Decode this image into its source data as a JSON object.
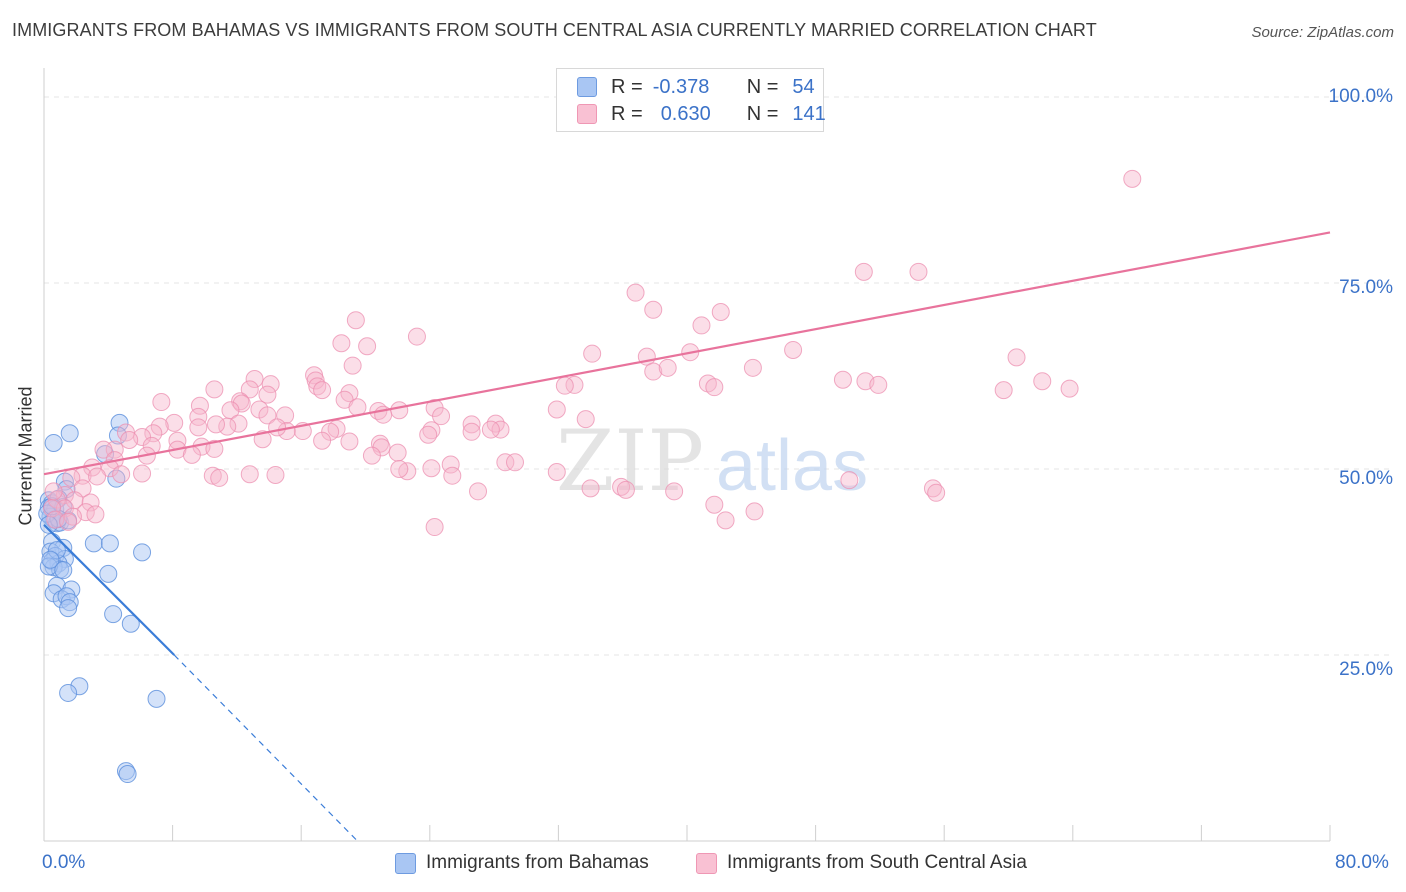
{
  "title": "IMMIGRANTS FROM BAHAMAS VS IMMIGRANTS FROM SOUTH CENTRAL ASIA CURRENTLY MARRIED CORRELATION CHART",
  "source": "Source: ZipAtlas.com",
  "legend": {
    "r_label": "R =",
    "n_label": "N =",
    "rows": [
      {
        "r": "-0.378",
        "n": "54",
        "fill": "#a9c6f3",
        "stroke": "#6e9be0"
      },
      {
        "r": "0.630",
        "n": "141",
        "fill": "#f9c1d3",
        "stroke": "#ef97b4"
      }
    ]
  },
  "bottom_legend": [
    "Immigrants from Bahamas",
    "Immigrants from South Central Asia"
  ],
  "watermark": {
    "zip": "ZIP",
    "atlas": "atlas"
  },
  "colors": {
    "blue": "#3b7dd8",
    "pink": "#e8739c",
    "blue_fill": "#a9c6f3",
    "pink_fill": "#f7b6cb",
    "axis_text": "#3b72c8"
  },
  "chart_data": {
    "type": "scatter",
    "title": "IMMIGRANTS FROM BAHAMAS VS IMMIGRANTS FROM SOUTH CENTRAL ASIA CURRENTLY MARRIED CORRELATION CHART",
    "xlabel": "",
    "ylabel": "Currently Married",
    "xlim": [
      0,
      80
    ],
    "ylim": [
      0,
      100
    ],
    "x_tick_labels": [
      "0.0%",
      "80.0%"
    ],
    "y_ticks": [
      25,
      50,
      75,
      100
    ],
    "y_tick_labels": [
      "25.0%",
      "50.0%",
      "75.0%",
      "100.0%"
    ],
    "series": [
      {
        "name": "Immigrants from Bahamas",
        "color": "#3b7dd8",
        "trend": {
          "x0": 0,
          "y0": 42.5,
          "x1": 8.1,
          "y1": 25.0,
          "dash_to_x": 19.5,
          "dash_to_y": 0
        },
        "points": [
          [
            0.6,
            53.5
          ],
          [
            1.6,
            54.8
          ],
          [
            4.7,
            56.2
          ],
          [
            4.6,
            54.5
          ],
          [
            3.8,
            52.0
          ],
          [
            4.5,
            48.7
          ],
          [
            1.3,
            48.3
          ],
          [
            1.4,
            47.3
          ],
          [
            0.3,
            45.8
          ],
          [
            0.5,
            45.4
          ],
          [
            0.9,
            46.0
          ],
          [
            0.3,
            44.8
          ],
          [
            0.7,
            44.6
          ],
          [
            1.2,
            44.9
          ],
          [
            0.4,
            43.6
          ],
          [
            0.6,
            43.2
          ],
          [
            0.8,
            42.7
          ],
          [
            1.0,
            42.8
          ],
          [
            1.5,
            43.1
          ],
          [
            0.5,
            40.2
          ],
          [
            1.2,
            39.4
          ],
          [
            0.4,
            38.9
          ],
          [
            0.7,
            38.3
          ],
          [
            1.3,
            37.9
          ],
          [
            0.5,
            37.6
          ],
          [
            0.9,
            37.3
          ],
          [
            0.6,
            36.8
          ],
          [
            1.0,
            36.5
          ],
          [
            0.3,
            36.9
          ],
          [
            3.1,
            40.0
          ],
          [
            4.1,
            40.0
          ],
          [
            6.1,
            38.8
          ],
          [
            4.0,
            35.9
          ],
          [
            0.8,
            34.3
          ],
          [
            1.7,
            33.8
          ],
          [
            0.6,
            33.3
          ],
          [
            1.1,
            32.5
          ],
          [
            1.4,
            32.9
          ],
          [
            1.6,
            32.1
          ],
          [
            1.5,
            31.3
          ],
          [
            4.3,
            30.5
          ],
          [
            5.4,
            29.2
          ],
          [
            2.2,
            20.8
          ],
          [
            1.5,
            19.9
          ],
          [
            7.0,
            19.1
          ],
          [
            5.1,
            9.4
          ],
          [
            5.2,
            9.0
          ],
          [
            0.2,
            44.0
          ],
          [
            0.9,
            43.3
          ],
          [
            0.3,
            42.5
          ],
          [
            0.8,
            39.1
          ],
          [
            0.4,
            37.8
          ],
          [
            1.2,
            36.4
          ],
          [
            0.5,
            45.0
          ]
        ]
      },
      {
        "name": "Immigrants from South Central Asia",
        "color": "#e8739c",
        "trend": {
          "x0": 0,
          "y0": 49.3,
          "x1": 80,
          "y1": 81.8
        },
        "points": [
          [
            67.7,
            89.0
          ],
          [
            36.8,
            73.7
          ],
          [
            51.0,
            76.5
          ],
          [
            54.4,
            76.5
          ],
          [
            37.9,
            71.4
          ],
          [
            42.1,
            71.1
          ],
          [
            40.9,
            69.3
          ],
          [
            19.4,
            70.0
          ],
          [
            23.2,
            67.8
          ],
          [
            18.5,
            66.9
          ],
          [
            20.1,
            66.5
          ],
          [
            46.6,
            66.0
          ],
          [
            40.2,
            65.7
          ],
          [
            34.1,
            65.5
          ],
          [
            37.5,
            65.1
          ],
          [
            37.9,
            63.1
          ],
          [
            38.8,
            63.6
          ],
          [
            44.1,
            63.6
          ],
          [
            19.2,
            63.9
          ],
          [
            41.3,
            61.5
          ],
          [
            49.7,
            62.0
          ],
          [
            60.5,
            65.0
          ],
          [
            62.1,
            61.8
          ],
          [
            63.8,
            60.8
          ],
          [
            59.7,
            60.6
          ],
          [
            51.1,
            61.8
          ],
          [
            51.9,
            61.3
          ],
          [
            41.7,
            61.0
          ],
          [
            33.0,
            61.3
          ],
          [
            32.4,
            61.2
          ],
          [
            16.8,
            62.6
          ],
          [
            16.9,
            61.9
          ],
          [
            17.0,
            61.1
          ],
          [
            17.3,
            60.6
          ],
          [
            19.0,
            60.2
          ],
          [
            18.7,
            59.3
          ],
          [
            13.1,
            62.1
          ],
          [
            14.1,
            61.4
          ],
          [
            12.8,
            60.7
          ],
          [
            10.6,
            60.7
          ],
          [
            13.9,
            60.0
          ],
          [
            12.2,
            59.1
          ],
          [
            12.3,
            58.8
          ],
          [
            9.7,
            58.5
          ],
          [
            7.3,
            59.0
          ],
          [
            8.1,
            56.2
          ],
          [
            9.6,
            57.0
          ],
          [
            13.4,
            58.0
          ],
          [
            11.6,
            57.9
          ],
          [
            13.9,
            57.2
          ],
          [
            15.0,
            57.2
          ],
          [
            19.5,
            58.3
          ],
          [
            20.8,
            57.8
          ],
          [
            21.1,
            57.3
          ],
          [
            22.1,
            57.9
          ],
          [
            24.3,
            58.2
          ],
          [
            24.7,
            57.1
          ],
          [
            31.9,
            58.0
          ],
          [
            33.7,
            56.7
          ],
          [
            28.1,
            56.1
          ],
          [
            28.4,
            55.3
          ],
          [
            26.6,
            56.0
          ],
          [
            27.8,
            55.3
          ],
          [
            26.6,
            55.0
          ],
          [
            24.1,
            55.2
          ],
          [
            23.9,
            54.6
          ],
          [
            18.2,
            55.4
          ],
          [
            17.8,
            55.0
          ],
          [
            16.1,
            55.1
          ],
          [
            15.1,
            55.1
          ],
          [
            14.5,
            55.6
          ],
          [
            12.1,
            56.1
          ],
          [
            11.4,
            55.7
          ],
          [
            10.7,
            56.0
          ],
          [
            9.6,
            55.6
          ],
          [
            7.2,
            55.7
          ],
          [
            6.8,
            54.8
          ],
          [
            6.1,
            54.3
          ],
          [
            5.1,
            54.9
          ],
          [
            5.3,
            53.9
          ],
          [
            4.4,
            52.6
          ],
          [
            6.7,
            53.1
          ],
          [
            8.3,
            53.8
          ],
          [
            8.3,
            52.6
          ],
          [
            9.8,
            53.0
          ],
          [
            10.6,
            52.7
          ],
          [
            13.6,
            54.0
          ],
          [
            17.3,
            53.8
          ],
          [
            19.0,
            53.7
          ],
          [
            20.9,
            53.4
          ],
          [
            21.0,
            52.9
          ],
          [
            22.0,
            52.2
          ],
          [
            25.3,
            50.6
          ],
          [
            28.7,
            50.9
          ],
          [
            29.3,
            50.9
          ],
          [
            20.4,
            51.8
          ],
          [
            9.2,
            51.9
          ],
          [
            6.4,
            51.8
          ],
          [
            3.7,
            52.6
          ],
          [
            4.4,
            51.2
          ],
          [
            4.1,
            50.1
          ],
          [
            3.0,
            50.2
          ],
          [
            2.4,
            49.1
          ],
          [
            1.7,
            48.8
          ],
          [
            3.3,
            49.0
          ],
          [
            4.8,
            49.3
          ],
          [
            6.1,
            49.4
          ],
          [
            10.5,
            49.1
          ],
          [
            10.9,
            48.8
          ],
          [
            12.8,
            49.3
          ],
          [
            14.4,
            49.2
          ],
          [
            22.6,
            49.7
          ],
          [
            22.1,
            50.0
          ],
          [
            24.1,
            50.1
          ],
          [
            25.4,
            49.1
          ],
          [
            31.9,
            49.6
          ],
          [
            27.0,
            47.0
          ],
          [
            34.0,
            47.4
          ],
          [
            35.9,
            47.6
          ],
          [
            36.2,
            47.2
          ],
          [
            39.2,
            47.0
          ],
          [
            41.7,
            45.2
          ],
          [
            44.2,
            44.3
          ],
          [
            50.1,
            48.5
          ],
          [
            42.4,
            43.1
          ],
          [
            24.3,
            42.2
          ],
          [
            55.3,
            47.4
          ],
          [
            55.5,
            46.8
          ],
          [
            2.4,
            47.4
          ],
          [
            1.3,
            46.5
          ],
          [
            0.8,
            45.9
          ],
          [
            1.9,
            45.8
          ],
          [
            0.6,
            47.0
          ],
          [
            2.9,
            45.5
          ],
          [
            1.3,
            44.7
          ],
          [
            2.6,
            44.2
          ],
          [
            0.5,
            44.7
          ],
          [
            1.8,
            43.6
          ],
          [
            3.2,
            43.9
          ],
          [
            0.7,
            43.2
          ],
          [
            1.5,
            42.9
          ]
        ]
      }
    ]
  }
}
